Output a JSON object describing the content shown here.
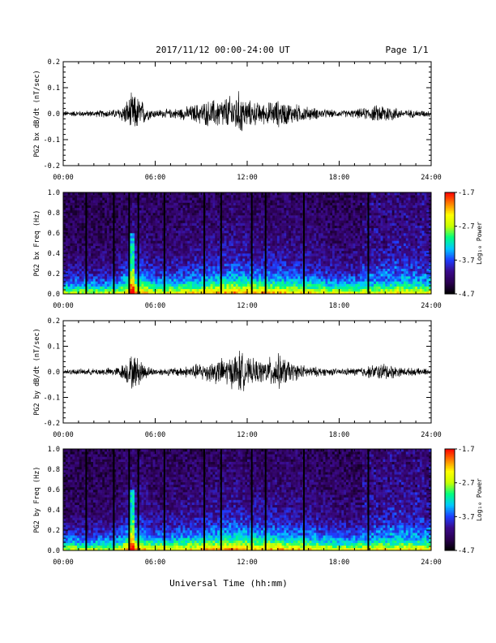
{
  "header": {
    "title": "2017/11/12  00:00-24:00 UT",
    "page": "Page 1/1"
  },
  "footer": {
    "xlabel": "Universal Time (hh:mm)"
  },
  "colors": {
    "trace": "#000000",
    "colormap": [
      "#000000",
      "#2a0050",
      "#3a0a8a",
      "#1e3cff",
      "#00c8ff",
      "#00ff80",
      "#c8ff00",
      "#ffff00",
      "#ff8000",
      "#ff0000"
    ]
  },
  "chart_data": [
    {
      "type": "line",
      "id": "bx-ts",
      "ylabel": "PG2 bx dB/dt (nT/sec)",
      "xlim": [
        0,
        24
      ],
      "ylim": [
        -0.2,
        0.2
      ],
      "xticks": [
        "00:00",
        "06:00",
        "12:00",
        "18:00",
        "24:00"
      ],
      "yticks": [
        "0.2",
        "0.1",
        "0.0",
        "-0.1",
        "-0.2"
      ],
      "envelope": {
        "hours": [
          0,
          2,
          3.5,
          4,
          4.5,
          5,
          5.5,
          6,
          7,
          8,
          9,
          10,
          11,
          11.5,
          12,
          13,
          14,
          15,
          16,
          17,
          18,
          19,
          20,
          21,
          22,
          23,
          24
        ],
        "amplitude": [
          0.012,
          0.014,
          0.02,
          0.045,
          0.09,
          0.07,
          0.03,
          0.018,
          0.02,
          0.03,
          0.05,
          0.065,
          0.08,
          0.1,
          0.06,
          0.045,
          0.06,
          0.045,
          0.03,
          0.02,
          0.014,
          0.018,
          0.03,
          0.045,
          0.02,
          0.016,
          0.014
        ]
      }
    },
    {
      "type": "heatmap",
      "id": "bx-spec",
      "ylabel": "PG2 bx Freq (Hz)",
      "xlim": [
        0,
        24
      ],
      "ylim": [
        0,
        1.0
      ],
      "xticks": [
        "00:00",
        "06:00",
        "12:00",
        "18:00",
        "24:00"
      ],
      "yticks": [
        "1.0",
        "0.8",
        "0.6",
        "0.4",
        "0.2",
        "0.0"
      ],
      "colorbar": {
        "label": "Log₁₀ Power",
        "range": [
          -4.7,
          -1.7
        ],
        "ticks": [
          "-1.7",
          "-2.7",
          "-3.7",
          "-4.7"
        ]
      },
      "gap_hours": [
        1.5,
        3.3,
        4.3,
        4.9,
        6.6,
        9.2,
        10.3,
        12.3,
        13.2,
        15.7,
        19.9
      ]
    },
    {
      "type": "line",
      "id": "by-ts",
      "ylabel": "PG2 by dB/dt (nT/sec)",
      "xlim": [
        0,
        24
      ],
      "ylim": [
        -0.2,
        0.2
      ],
      "xticks": [
        "00:00",
        "06:00",
        "12:00",
        "18:00",
        "24:00"
      ],
      "yticks": [
        "0.2",
        "0.1",
        "0.0",
        "-0.1",
        "-0.2"
      ],
      "envelope": {
        "hours": [
          0,
          2,
          3.5,
          4,
          4.5,
          5,
          5.5,
          6,
          7,
          8,
          9,
          10,
          11,
          11.5,
          12,
          13,
          14,
          15,
          16,
          17,
          18,
          19,
          20,
          21,
          22,
          23,
          24
        ],
        "amplitude": [
          0.012,
          0.014,
          0.02,
          0.04,
          0.08,
          0.06,
          0.025,
          0.015,
          0.018,
          0.025,
          0.04,
          0.055,
          0.07,
          0.1,
          0.06,
          0.05,
          0.08,
          0.04,
          0.025,
          0.018,
          0.014,
          0.018,
          0.028,
          0.04,
          0.02,
          0.016,
          0.014
        ]
      }
    },
    {
      "type": "heatmap",
      "id": "by-spec",
      "ylabel": "PG2 by Freq (Hz)",
      "xlim": [
        0,
        24
      ],
      "ylim": [
        0,
        1.0
      ],
      "xticks": [
        "00:00",
        "06:00",
        "12:00",
        "18:00",
        "24:00"
      ],
      "yticks": [
        "1.0",
        "0.8",
        "0.6",
        "0.4",
        "0.2",
        "0.0"
      ],
      "colorbar": {
        "label": "Log₁₀ Power",
        "range": [
          -4.7,
          -1.7
        ],
        "ticks": [
          "-1.7",
          "-2.7",
          "-3.7",
          "-4.7"
        ]
      },
      "gap_hours": [
        1.5,
        3.3,
        4.3,
        4.9,
        6.6,
        9.2,
        10.3,
        12.3,
        13.2,
        15.7,
        19.9
      ]
    }
  ]
}
